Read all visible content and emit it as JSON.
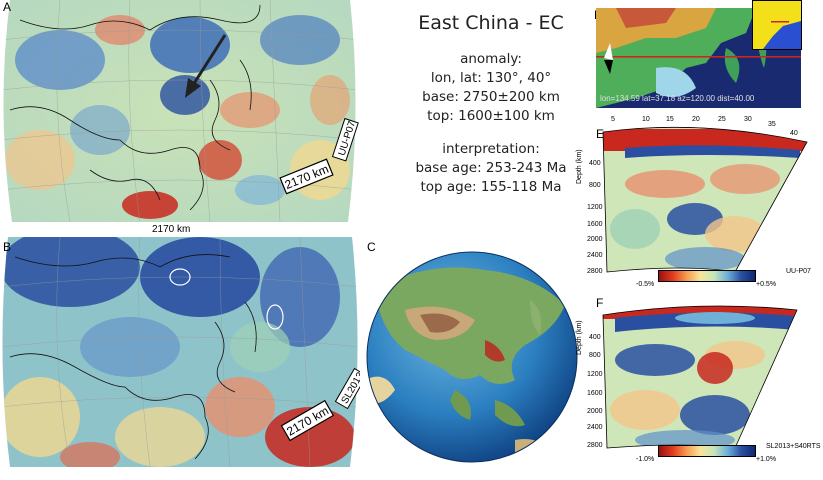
{
  "title": "East China - EC",
  "anomaly": {
    "heading": "anomaly:",
    "lonlat": "lon, lat: 130°, 40°",
    "base": "base: 2750±200 km",
    "top": "top: 1600±100 km"
  },
  "interpretation": {
    "heading": "interpretation:",
    "base_age": "base age: 253-243 Ma",
    "top_age": "top age: 155-118 Ma"
  },
  "panels": {
    "a": {
      "label": "A",
      "scale": "2170 km",
      "model": "UU-P07",
      "caption": "2170 km"
    },
    "b": {
      "label": "B",
      "scale": "2170 km",
      "model": "SL2013"
    },
    "c": {
      "label": "C"
    },
    "d": {
      "label": "D",
      "info": "lon=134.59 lat=37.18 az=120.00 dist=40.00"
    },
    "e": {
      "label": "E",
      "x_ticks": [
        "5",
        "10",
        "15",
        "20",
        "25",
        "30",
        "35",
        "40"
      ],
      "ylabel": "Depth (km)",
      "y_ticks": [
        "400",
        "800",
        "1200",
        "1600",
        "2000",
        "2400",
        "2800"
      ],
      "scale_min": "-0.5%",
      "scale_max": "+0.5%",
      "model": "UU-P07"
    },
    "f": {
      "label": "F",
      "ylabel": "Depth (km)",
      "y_ticks": [
        "400",
        "800",
        "1200",
        "1600",
        "2000",
        "2400",
        "2800"
      ],
      "scale_min": "-1.0%",
      "scale_max": "+1.0%",
      "model": "SL2013+S40RTS"
    }
  },
  "colors": {
    "fast": "#1f4fa8",
    "slow": "#c8281e",
    "neutral": "#f4e6a0",
    "mid_green": "#8fcfb0"
  }
}
